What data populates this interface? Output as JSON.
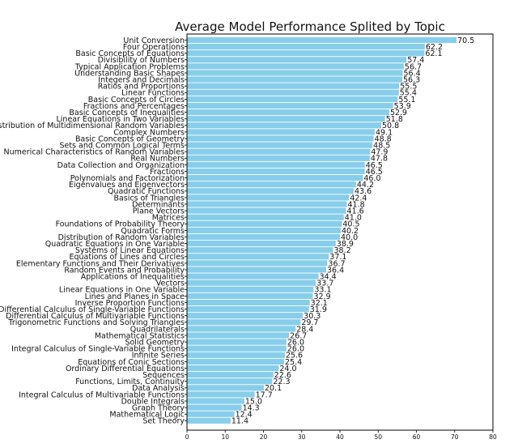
{
  "chart_data": {
    "type": "bar",
    "orientation": "horizontal",
    "title": "Average Model Performance Splited by Topic",
    "xlabel": "",
    "ylabel": "",
    "xlim": [
      0,
      80
    ],
    "xticks": [
      0,
      10,
      20,
      30,
      40,
      50,
      60,
      70,
      80
    ],
    "grid": false,
    "bar_color": "#87ceeb",
    "categories": [
      "Unit Conversion",
      "Four Operations",
      "Basic Concepts of Equations",
      "Divisibility of Numbers",
      "Typical Application Problems",
      "Understanding Basic Shapes",
      "Integers and Decimals",
      "Ratios and Proportions",
      "Linear Functions",
      "Basic Concepts of Circles",
      "Fractions and Percentages",
      "Basic Concepts of Inequalities",
      "Linear Equations in Two Variables",
      "Distribution of Multidimensional Random Variables",
      "Complex Numbers",
      "Basic Concepts of Geometry",
      "Sets and Common Logical Terms",
      "Numerical Characteristics of Random Variables",
      "Real Numbers",
      "Data Collection and Organization",
      "Fractions",
      "Polynomials and Factorization",
      "Eigenvalues and Eigenvectors",
      "Quadratic Functions",
      "Basics of Triangles",
      "Determinants",
      "Plane Vectors",
      "Matrices",
      "Foundations of Probability Theory",
      "Quadratic Forms",
      "Distribution of Random Variables",
      "Quadratic Equations in One Variable",
      "Systems of Linear Equations",
      "Equations of Lines and Circles",
      "Elementary Functions and Their Derivatives",
      "Random Events and Probability",
      "Applications of Inequalities",
      "Vectors",
      "Linear Equations in One Variable",
      "Lines and Planes in Space",
      "Inverse Proportion Functions",
      "Differential Calculus of Single-Variable Functions",
      "Differential Calculus of Multivariable Functions",
      "Trigonometric Functions and Solving Triangles",
      "Quadrilaterals",
      "Mathematical Statistics",
      "Solid Geometry",
      "Integral Calculus of Single-Variable Functions",
      "Infinite Series",
      "Equations of Conic Sections",
      "Ordinary Differential Equations",
      "Sequences",
      "Functions, Limits, Continuity",
      "Data Analysis",
      "Integral Calculus of Multivariable Functions",
      "Double Integrals",
      "Graph Theory",
      "Mathematical Logic",
      "Set Theory"
    ],
    "values": [
      70.5,
      62.2,
      62.1,
      57.4,
      56.7,
      56.4,
      56.3,
      55.5,
      55.4,
      55.1,
      53.9,
      52.9,
      51.8,
      50.8,
      49.1,
      48.8,
      48.5,
      47.9,
      47.8,
      46.5,
      46.5,
      46.0,
      44.2,
      43.6,
      42.4,
      41.8,
      41.6,
      41.0,
      40.5,
      40.2,
      40.0,
      38.9,
      38.2,
      37.1,
      36.7,
      36.4,
      34.4,
      33.7,
      33.1,
      32.9,
      32.1,
      31.9,
      30.3,
      29.7,
      28.4,
      26.7,
      26.0,
      26.0,
      25.6,
      25.4,
      24.0,
      22.6,
      22.3,
      20.1,
      17.7,
      15.0,
      14.3,
      12.4,
      11.4
    ],
    "value_labels": [
      "70.5",
      "62.2",
      "62.1",
      "57.4",
      "56.7",
      "56.4",
      "56.3",
      "55.5",
      "55.4",
      "55.1",
      "53.9",
      "52.9",
      "51.8",
      "50.8",
      "49.1",
      "48.8",
      "48.5",
      "47.9",
      "47.8",
      "46.5",
      "46.5",
      "46.0",
      "44.2",
      "43.6",
      "42.4",
      "41.8",
      "41.6",
      "41.0",
      "40.5",
      "40.2",
      "40.0",
      "38.9",
      "38.2",
      "37.1",
      "36.7",
      "36.4",
      "34.4",
      "33.7",
      "33.1",
      "32.9",
      "32.1",
      "31.9",
      "30.3",
      "29.7",
      "28.4",
      "26.7",
      "26.0",
      "26.0",
      "25.6",
      "25.4",
      "24.0",
      "22.6",
      "22.3",
      "20.1",
      "17.7",
      "15.0",
      "14.3",
      "12.4",
      "11.4"
    ]
  }
}
